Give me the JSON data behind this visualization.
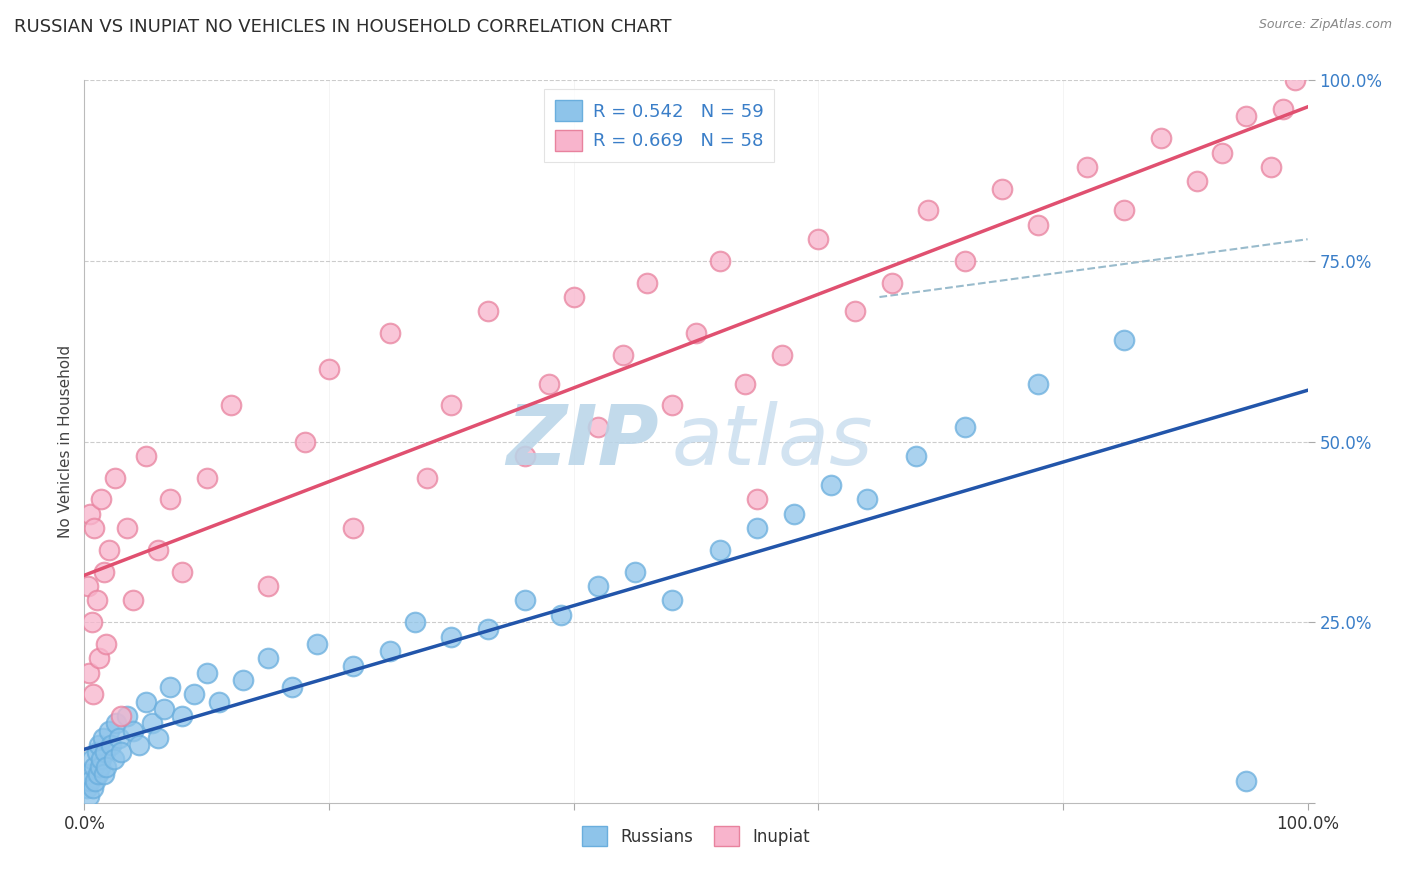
{
  "title": "RUSSIAN VS INUPIAT NO VEHICLES IN HOUSEHOLD CORRELATION CHART",
  "source": "Source: ZipAtlas.com",
  "ylabel": "No Vehicles in Household",
  "russian_R": "0.542",
  "russian_N": "59",
  "inupiat_R": "0.669",
  "inupiat_N": "58",
  "russian_dot_color": "#8EC4EA",
  "russian_dot_edge": "#6aaedd",
  "russian_line_color": "#2255AA",
  "inupiat_dot_color": "#F8B4CC",
  "inupiat_dot_edge": "#e8829e",
  "inupiat_line_color": "#E05070",
  "dash_line_color": "#99BBCC",
  "background_color": "#FFFFFF",
  "grid_color": "#CCCCCC",
  "title_color": "#2D2D2D",
  "source_color": "#888888",
  "legend_text_color": "#3A7EC8",
  "right_tick_color": "#3A7EC8",
  "watermark_text": "ZIPatlas",
  "watermark_color": "#C8DFF0",
  "legend_russian_label": "R = 0.542   N = 59",
  "legend_inupiat_label": "R = 0.669   N = 58",
  "russian_x": [
    0.2,
    0.3,
    0.4,
    0.5,
    0.6,
    0.7,
    0.8,
    0.9,
    1.0,
    1.1,
    1.2,
    1.3,
    1.4,
    1.5,
    1.6,
    1.7,
    1.8,
    2.0,
    2.2,
    2.4,
    2.6,
    2.8,
    3.0,
    3.5,
    4.0,
    4.5,
    5.0,
    5.5,
    6.0,
    6.5,
    7.0,
    8.0,
    9.0,
    10.0,
    11.0,
    13.0,
    15.0,
    17.0,
    19.0,
    22.0,
    25.0,
    27.0,
    30.0,
    33.0,
    36.0,
    39.0,
    42.0,
    45.0,
    48.0,
    52.0,
    55.0,
    58.0,
    61.0,
    64.0,
    68.0,
    72.0,
    78.0,
    85.0,
    95.0
  ],
  "russian_y": [
    2.0,
    4.0,
    1.0,
    3.0,
    6.0,
    2.0,
    5.0,
    3.0,
    7.0,
    4.0,
    8.0,
    5.0,
    6.0,
    9.0,
    4.0,
    7.0,
    5.0,
    10.0,
    8.0,
    6.0,
    11.0,
    9.0,
    7.0,
    12.0,
    10.0,
    8.0,
    14.0,
    11.0,
    9.0,
    13.0,
    16.0,
    12.0,
    15.0,
    18.0,
    14.0,
    17.0,
    20.0,
    16.0,
    22.0,
    19.0,
    21.0,
    25.0,
    23.0,
    24.0,
    28.0,
    26.0,
    30.0,
    32.0,
    28.0,
    35.0,
    38.0,
    40.0,
    44.0,
    42.0,
    48.0,
    52.0,
    58.0,
    64.0,
    3.0
  ],
  "inupiat_x": [
    0.3,
    0.4,
    0.5,
    0.6,
    0.7,
    0.8,
    1.0,
    1.2,
    1.4,
    1.6,
    1.8,
    2.0,
    2.5,
    3.0,
    3.5,
    4.0,
    5.0,
    6.0,
    7.0,
    8.0,
    10.0,
    12.0,
    15.0,
    18.0,
    20.0,
    22.0,
    25.0,
    28.0,
    30.0,
    33.0,
    36.0,
    38.0,
    40.0,
    42.0,
    44.0,
    46.0,
    48.0,
    50.0,
    52.0,
    54.0,
    55.0,
    57.0,
    60.0,
    63.0,
    66.0,
    69.0,
    72.0,
    75.0,
    78.0,
    82.0,
    85.0,
    88.0,
    91.0,
    93.0,
    95.0,
    97.0,
    98.0,
    99.0
  ],
  "inupiat_y": [
    30.0,
    18.0,
    40.0,
    25.0,
    15.0,
    38.0,
    28.0,
    20.0,
    42.0,
    32.0,
    22.0,
    35.0,
    45.0,
    12.0,
    38.0,
    28.0,
    48.0,
    35.0,
    42.0,
    32.0,
    45.0,
    55.0,
    30.0,
    50.0,
    60.0,
    38.0,
    65.0,
    45.0,
    55.0,
    68.0,
    48.0,
    58.0,
    70.0,
    52.0,
    62.0,
    72.0,
    55.0,
    65.0,
    75.0,
    58.0,
    42.0,
    62.0,
    78.0,
    68.0,
    72.0,
    82.0,
    75.0,
    85.0,
    80.0,
    88.0,
    82.0,
    92.0,
    86.0,
    90.0,
    95.0,
    88.0,
    96.0,
    100.0
  ],
  "xlim": [
    0,
    100
  ],
  "ylim": [
    0,
    100
  ],
  "figsize": [
    14.06,
    8.92
  ],
  "dpi": 100
}
